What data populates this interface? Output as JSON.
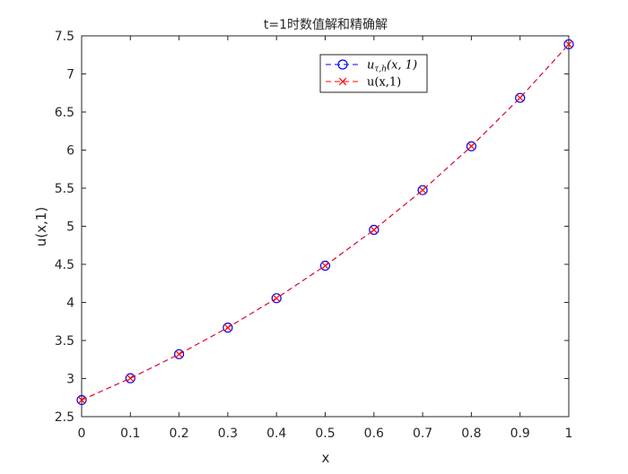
{
  "chart_data": {
    "type": "line",
    "title": "t=1时数值解和精确解",
    "xlabel": "x",
    "ylabel": "u(x,1)",
    "xlim": [
      0,
      1
    ],
    "ylim": [
      2.5,
      7.5
    ],
    "xticks": [
      0,
      0.1,
      0.2,
      0.3,
      0.4,
      0.5,
      0.6,
      0.7,
      0.8,
      0.9,
      1
    ],
    "xtick_labels": [
      "0",
      "0.1",
      "0.2",
      "0.3",
      "0.4",
      "0.5",
      "0.6",
      "0.7",
      "0.8",
      "0.9",
      "1"
    ],
    "yticks": [
      2.5,
      3,
      3.5,
      4,
      4.5,
      5,
      5.5,
      6,
      6.5,
      7,
      7.5
    ],
    "ytick_labels": [
      "2.5",
      "3",
      "3.5",
      "4",
      "4.5",
      "5",
      "5.5",
      "6",
      "6.5",
      "7",
      "7.5"
    ],
    "grid": false,
    "legend_position": "top-right",
    "x": [
      0,
      0.1,
      0.2,
      0.3,
      0.4,
      0.5,
      0.6,
      0.7,
      0.8,
      0.9,
      1
    ],
    "series": [
      {
        "name": "u_{τ,h}(x,1)",
        "legend_main": "u",
        "legend_sub": "τ,h",
        "legend_rest": "(x, 1)",
        "values": [
          2.718,
          3.004,
          3.32,
          3.669,
          4.055,
          4.482,
          4.953,
          5.474,
          6.05,
          6.686,
          7.389
        ],
        "color": "#0000ff",
        "line_style": "dashed",
        "marker": "circle"
      },
      {
        "name": "u(x,1)",
        "legend_main": "u(x,1)",
        "legend_sub": "",
        "legend_rest": "",
        "values": [
          2.718,
          3.004,
          3.32,
          3.669,
          4.055,
          4.482,
          4.953,
          5.474,
          6.05,
          6.686,
          7.389
        ],
        "color": "#ff0000",
        "line_style": "dashed",
        "marker": "cross"
      }
    ]
  }
}
